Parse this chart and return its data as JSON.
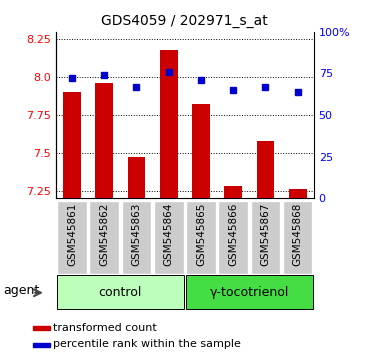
{
  "title": "GDS4059 / 202971_s_at",
  "samples": [
    "GSM545861",
    "GSM545862",
    "GSM545863",
    "GSM545864",
    "GSM545865",
    "GSM545866",
    "GSM545867",
    "GSM545868"
  ],
  "transformed_count": [
    7.9,
    7.96,
    7.47,
    8.18,
    7.82,
    7.28,
    7.58,
    7.26
  ],
  "percentile_rank": [
    72,
    74,
    67,
    76,
    71,
    65,
    67,
    64
  ],
  "ylim_left": [
    7.2,
    8.3
  ],
  "ylim_right": [
    0,
    100
  ],
  "yticks_left": [
    7.25,
    7.5,
    7.75,
    8.0,
    8.25
  ],
  "yticks_right": [
    0,
    25,
    50,
    75,
    100
  ],
  "bar_color": "#cc0000",
  "dot_color": "#0000cc",
  "bar_width": 0.55,
  "group1_label": "control",
  "group2_label": "γ-tocotrienol",
  "group1_color": "#bbffbb",
  "group2_color": "#44dd44",
  "agent_label": "agent",
  "legend_bar_label": "transformed count",
  "legend_dot_label": "percentile rank within the sample",
  "bg_color": "#cccccc",
  "plot_bg": "#ffffff"
}
